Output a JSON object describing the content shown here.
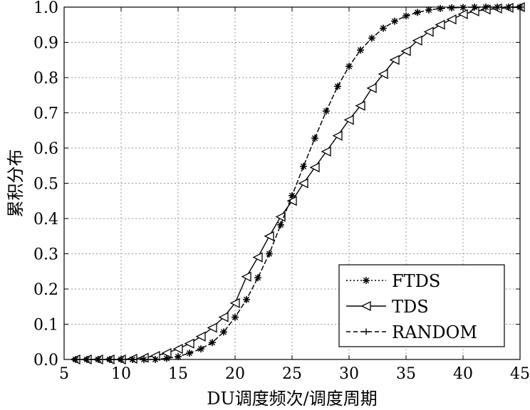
{
  "chart_data": {
    "type": "line",
    "title": "",
    "xlabel": "DU调度频次/调度周期",
    "ylabel": "累积分布",
    "xlim": [
      5,
      45
    ],
    "ylim": [
      0,
      1
    ],
    "xticks": [
      5,
      10,
      15,
      20,
      25,
      30,
      35,
      40,
      45
    ],
    "yticks": [
      0.0,
      0.1,
      0.2,
      0.3,
      0.4,
      0.5,
      0.6,
      0.7,
      0.8,
      0.9,
      1.0
    ],
    "xtick_labels": [
      "5",
      "10",
      "15",
      "20",
      "25",
      "30",
      "35",
      "40",
      "45"
    ],
    "ytick_labels": [
      "0.0",
      "0.1",
      "0.2",
      "0.3",
      "0.4",
      "0.5",
      "0.6",
      "0.7",
      "0.8",
      "0.9",
      "1.0"
    ],
    "grid": true,
    "legend_position": "bottom-right",
    "x": [
      6,
      7,
      8,
      9,
      10,
      11,
      12,
      13,
      14,
      15,
      16,
      17,
      18,
      19,
      20,
      21,
      22,
      23,
      24,
      25,
      26,
      27,
      28,
      29,
      30,
      31,
      32,
      33,
      34,
      35,
      36,
      37,
      38,
      39,
      40,
      41,
      42,
      43,
      44,
      45
    ],
    "series": [
      {
        "name": "FTDS",
        "line_style": "dotted",
        "marker": "asterisk",
        "values": [
          0.0,
          0.0,
          0.0,
          0.0,
          0.0,
          0.0,
          0.0,
          0.0,
          0.003,
          0.008,
          0.018,
          0.03,
          0.048,
          0.078,
          0.12,
          0.17,
          0.232,
          0.3,
          0.382,
          0.465,
          0.548,
          0.628,
          0.705,
          0.775,
          0.832,
          0.878,
          0.912,
          0.94,
          0.96,
          0.975,
          0.985,
          0.992,
          0.996,
          0.998,
          0.999,
          1.0,
          1.0,
          1.0,
          1.0,
          1.0
        ]
      },
      {
        "name": "TDS",
        "line_style": "solid",
        "marker": "triangle-left",
        "values": [
          0.0,
          0.0,
          0.0,
          0.0,
          0.0,
          0.002,
          0.005,
          0.01,
          0.018,
          0.03,
          0.045,
          0.065,
          0.09,
          0.12,
          0.16,
          0.235,
          0.29,
          0.35,
          0.405,
          0.45,
          0.5,
          0.545,
          0.59,
          0.635,
          0.68,
          0.72,
          0.77,
          0.81,
          0.85,
          0.875,
          0.905,
          0.93,
          0.95,
          0.965,
          0.98,
          0.988,
          0.993,
          0.996,
          0.998,
          1.0
        ]
      },
      {
        "name": "RANDOM",
        "line_style": "dashed",
        "marker": "plus",
        "values": [
          0.0,
          0.0,
          0.0,
          0.0,
          0.0,
          0.0,
          0.0,
          0.0,
          0.003,
          0.008,
          0.018,
          0.03,
          0.048,
          0.078,
          0.12,
          0.17,
          0.232,
          0.3,
          0.382,
          0.465,
          0.548,
          0.628,
          0.705,
          0.775,
          0.832,
          0.878,
          0.912,
          0.94,
          0.96,
          0.975,
          0.985,
          0.992,
          0.996,
          0.998,
          0.999,
          1.0,
          1.0,
          1.0,
          1.0,
          1.0
        ]
      }
    ]
  }
}
